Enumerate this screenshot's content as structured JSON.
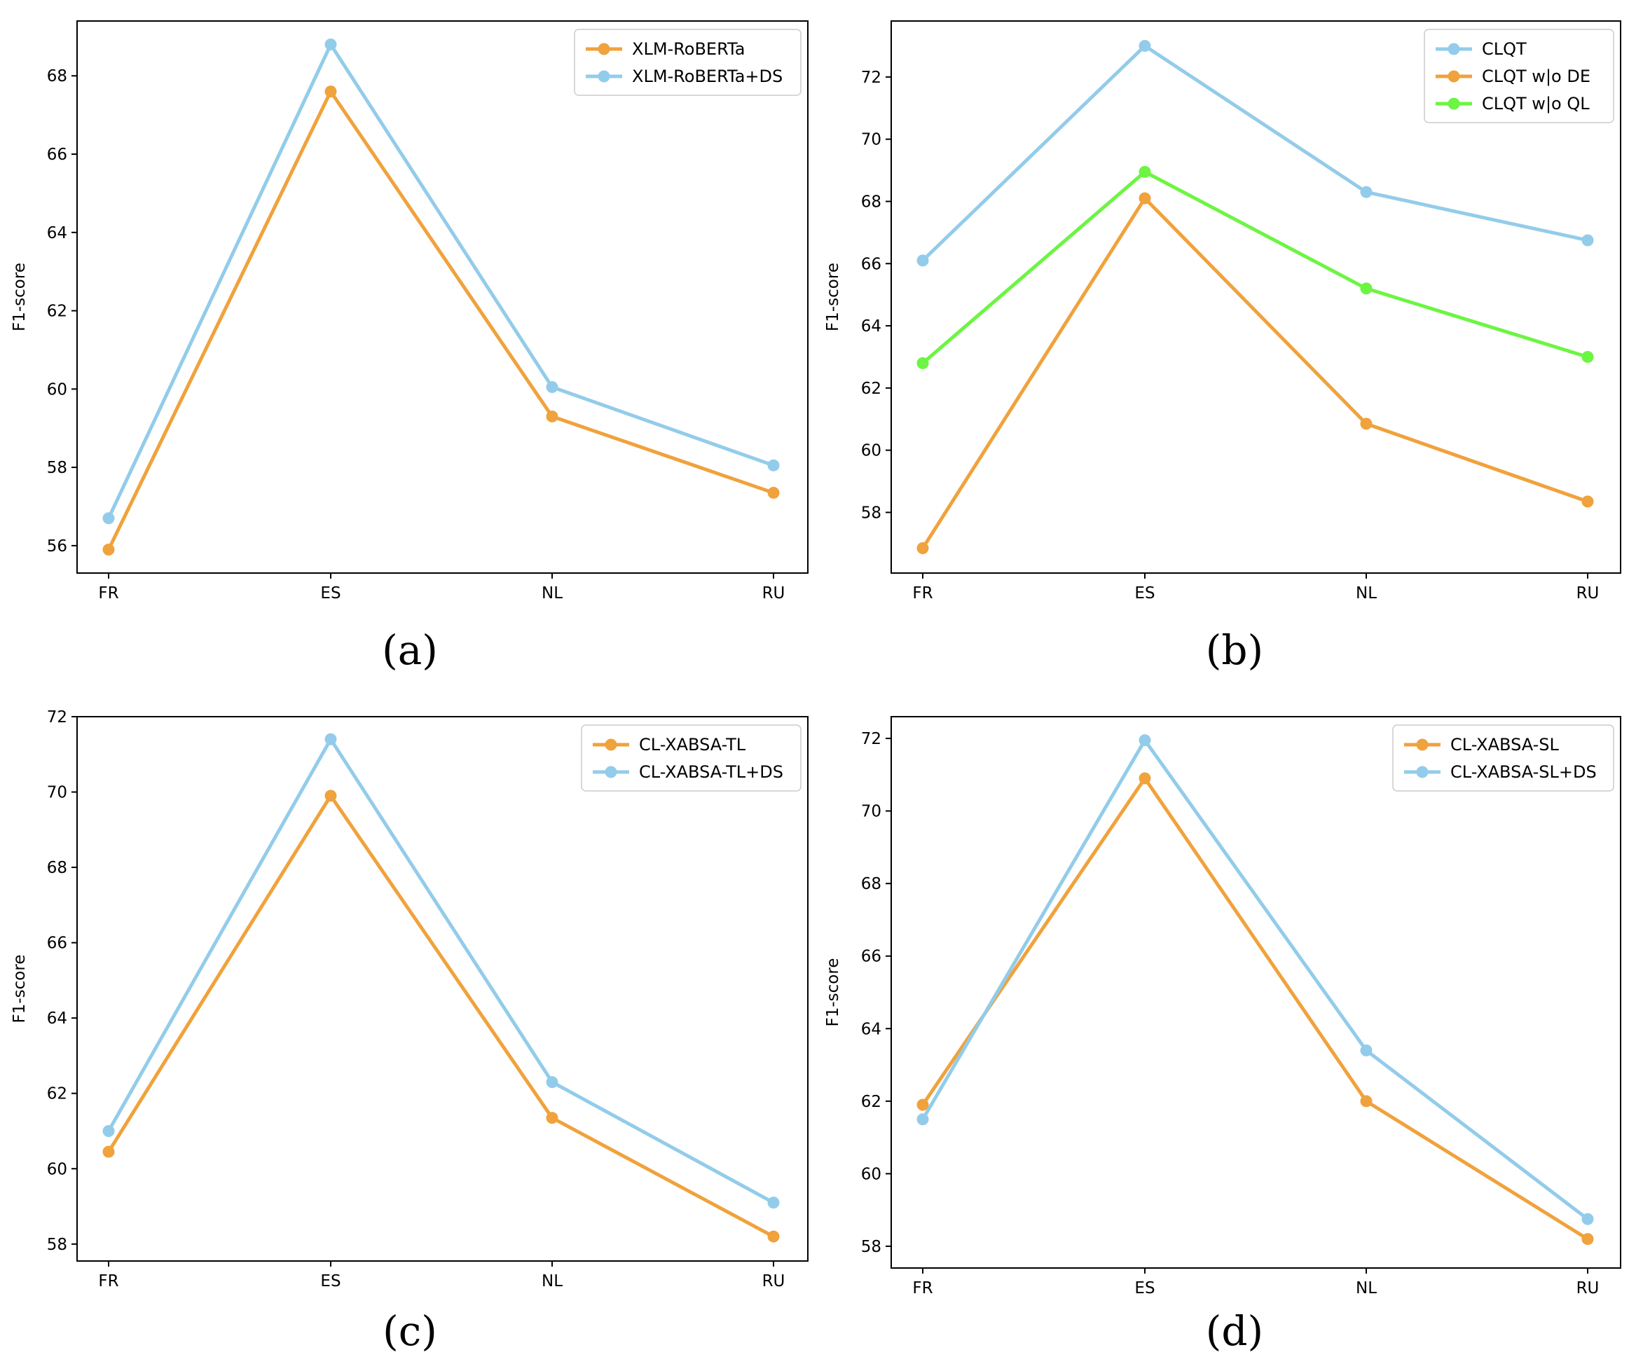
{
  "colors": {
    "orange": "#F0A23C",
    "blue": "#93CCEA",
    "green": "#6CF542"
  },
  "chart_data": [
    {
      "type": "line",
      "caption": "(a)",
      "ylabel": "F1-score",
      "xlabel": "",
      "categories": [
        "FR",
        "ES",
        "NL",
        "RU"
      ],
      "ylim": [
        55.3,
        69.4
      ],
      "yticks": [
        56,
        58,
        60,
        62,
        64,
        66,
        68
      ],
      "legend_position": "top-right",
      "series": [
        {
          "name": "XLM-RoBERTa",
          "color": "orange",
          "values": [
            55.9,
            67.6,
            59.3,
            57.35
          ]
        },
        {
          "name": "XLM-RoBERTa+DS",
          "color": "blue",
          "values": [
            56.7,
            68.8,
            60.05,
            58.05
          ]
        }
      ]
    },
    {
      "type": "line",
      "caption": "(b)",
      "ylabel": "F1-score",
      "xlabel": "",
      "categories": [
        "FR",
        "ES",
        "NL",
        "RU"
      ],
      "ylim": [
        56.05,
        73.8
      ],
      "yticks": [
        58,
        60,
        62,
        64,
        66,
        68,
        70,
        72
      ],
      "legend_position": "top-right",
      "series": [
        {
          "name": "CLQT",
          "color": "blue",
          "values": [
            66.1,
            73.0,
            68.3,
            66.75
          ]
        },
        {
          "name": "CLQT w|o DE",
          "color": "orange",
          "values": [
            56.85,
            68.1,
            60.85,
            58.35
          ]
        },
        {
          "name": "CLQT w|o QL",
          "color": "green",
          "values": [
            62.8,
            68.95,
            65.2,
            63.0
          ]
        }
      ]
    },
    {
      "type": "line",
      "caption": "(c)",
      "ylabel": "F1-score",
      "xlabel": "",
      "categories": [
        "FR",
        "ES",
        "NL",
        "RU"
      ],
      "ylim": [
        57.55,
        72.0
      ],
      "yticks": [
        58,
        60,
        62,
        64,
        66,
        68,
        70,
        72
      ],
      "legend_position": "top-right",
      "series": [
        {
          "name": "CL-XABSA-TL",
          "color": "orange",
          "values": [
            60.45,
            69.9,
            61.35,
            58.2
          ]
        },
        {
          "name": "CL-XABSA-TL+DS",
          "color": "blue",
          "values": [
            61.0,
            71.4,
            62.3,
            59.1
          ]
        }
      ]
    },
    {
      "type": "line",
      "caption": "(d)",
      "ylabel": "F1-score",
      "xlabel": "",
      "categories": [
        "FR",
        "ES",
        "NL",
        "RU"
      ],
      "ylim": [
        57.4,
        72.6
      ],
      "yticks": [
        58,
        60,
        62,
        64,
        66,
        68,
        70,
        72
      ],
      "legend_position": "top-right",
      "series": [
        {
          "name": "CL-XABSA-SL",
          "color": "orange",
          "values": [
            61.9,
            70.9,
            62.0,
            58.2
          ]
        },
        {
          "name": "CL-XABSA-SL+DS",
          "color": "blue",
          "values": [
            61.5,
            71.95,
            63.4,
            58.75
          ]
        }
      ]
    }
  ]
}
